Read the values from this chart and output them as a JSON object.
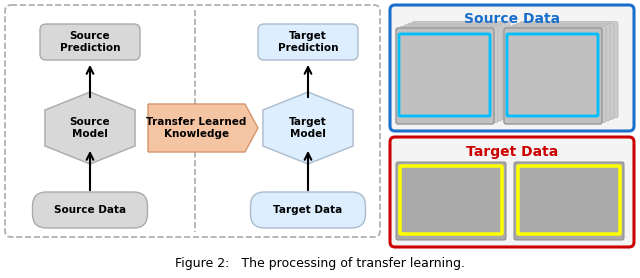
{
  "fig_width": 6.4,
  "fig_height": 2.78,
  "dpi": 100,
  "caption": "Figure 2:   The processing of transfer learning.",
  "caption_fontsize": 9,
  "gray_fill": "#d8d8d8",
  "gray_ec": "#aaaaaa",
  "blue_fill": "#ddeeff",
  "blue_ec": "#aabbcc",
  "transfer_fill": "#f5c5a3",
  "transfer_ec": "#d4956a",
  "source_pred_text": "Source\nPrediction",
  "source_model_text": "Source\nModel",
  "source_data_text": "Source Data",
  "transfer_text": "Transfer Learned\nKnowledge",
  "target_pred_text": "Target\nPrediction",
  "target_model_text": "Target\nModel",
  "target_data_text": "Target Data",
  "source_panel_label": "Source Data",
  "target_panel_label": "Target Data",
  "source_panel_color": "#1a6fcc",
  "target_panel_color": "#cc0000",
  "yellow_border": "#ffff00",
  "cyan_border": "#00bfff",
  "dashed_color": "#aaaaaa",
  "text_fontsize": 7.5,
  "label_fontsize": 10
}
